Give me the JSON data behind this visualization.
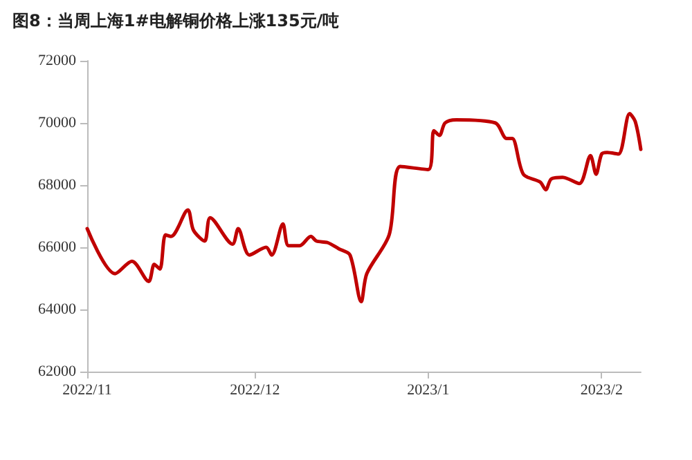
{
  "chart_data": {
    "type": "line",
    "title": "图8：当周上海1#电解铜价格上涨135元/吨",
    "x": [
      "2022-11-01",
      "2022-11-06",
      "2022-11-09",
      "2022-11-12",
      "2022-11-13",
      "2022-11-14",
      "2022-11-15",
      "2022-11-16",
      "2022-11-19",
      "2022-11-20",
      "2022-11-22",
      "2022-11-23",
      "2022-11-27",
      "2022-11-28",
      "2022-11-30",
      "2022-12-03",
      "2022-12-04",
      "2022-12-06",
      "2022-12-07",
      "2022-12-09",
      "2022-12-11",
      "2022-12-12",
      "2022-12-14",
      "2022-12-16",
      "2022-12-18",
      "2022-12-20",
      "2022-12-21",
      "2022-12-25",
      "2022-12-27",
      "2023-01-01",
      "2023-01-02",
      "2023-01-03",
      "2023-01-04",
      "2023-01-06",
      "2023-01-13",
      "2023-01-15",
      "2023-01-16",
      "2023-01-18",
      "2023-01-21",
      "2023-01-22",
      "2023-01-23",
      "2023-01-25",
      "2023-01-28",
      "2023-01-30",
      "2023-01-31",
      "2023-02-01",
      "2023-02-02",
      "2023-02-04",
      "2023-02-06",
      "2023-02-07",
      "2023-02-08"
    ],
    "series": [
      {
        "color": "#c00000",
        "values": [
          66600,
          65150,
          65550,
          64900,
          65450,
          65300,
          66400,
          66350,
          67200,
          66550,
          66200,
          66950,
          66100,
          66600,
          65750,
          66000,
          65750,
          66750,
          66050,
          66050,
          66350,
          66200,
          66150,
          65950,
          65750,
          64250,
          65150,
          66400,
          68600,
          68500,
          69750,
          69600,
          70000,
          70100,
          70000,
          69500,
          69500,
          68350,
          68100,
          67850,
          68200,
          68250,
          68050,
          68950,
          68350,
          69000,
          69050,
          69000,
          70300,
          70050,
          69150
        ]
      }
    ],
    "xlim": [
      "2022-11-01",
      "2023-02-08"
    ],
    "xticks": [
      {
        "value": "2022-11-01",
        "label": "2022/11"
      },
      {
        "value": "2022-12-01",
        "label": "2022/12"
      },
      {
        "value": "2023-01-01",
        "label": "2023/1"
      },
      {
        "value": "2023-02-01",
        "label": "2023/2"
      }
    ],
    "ylim": [
      62000,
      72000
    ],
    "yticks": [
      62000,
      64000,
      66000,
      68000,
      70000,
      72000
    ],
    "grid": false,
    "marker": "none",
    "line_style": "solid"
  }
}
